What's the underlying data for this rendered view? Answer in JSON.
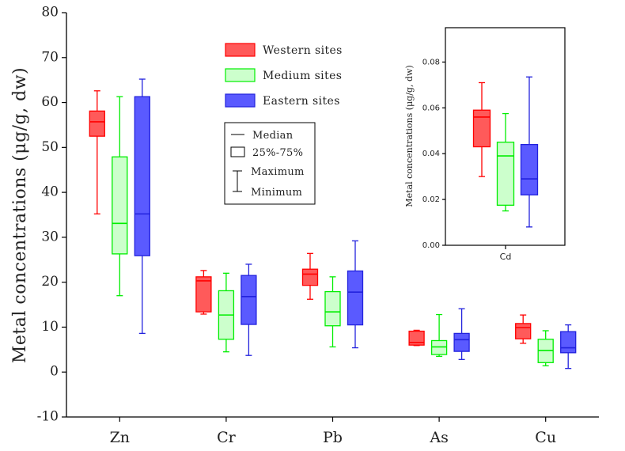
{
  "chart_data": [
    {
      "type": "boxplot",
      "title": "",
      "xlabel": "",
      "ylabel": "Metal concentrations (μg/g, dw)",
      "ylim": [
        -10,
        80
      ],
      "yticks": [
        -10,
        0,
        10,
        20,
        30,
        40,
        50,
        60,
        70,
        80
      ],
      "categories": [
        "Zn",
        "Cr",
        "Pb",
        "As",
        "Cu"
      ],
      "series": [
        {
          "name": "Western sites",
          "color": "#ff0000",
          "fill": "#ff5a5a",
          "boxes": [
            {
              "min": 35.2,
              "q1": 52.5,
              "median": 55.7,
              "q3": 58.1,
              "max": 62.6
            },
            {
              "min": 12.9,
              "q1": 13.4,
              "median": 20.3,
              "q3": 21.2,
              "max": 22.6
            },
            {
              "min": 16.2,
              "q1": 19.3,
              "median": 21.8,
              "q3": 22.9,
              "max": 26.4
            },
            {
              "min": 5.9,
              "q1": 6.0,
              "median": 6.6,
              "q3": 9.1,
              "max": 9.3
            },
            {
              "min": 6.4,
              "q1": 7.4,
              "median": 9.9,
              "q3": 10.8,
              "max": 12.7
            }
          ]
        },
        {
          "name": "Medium sites",
          "color": "#00ee00",
          "fill": "#ccffcc",
          "boxes": [
            {
              "min": 17.0,
              "q1": 26.3,
              "median": 33.1,
              "q3": 47.9,
              "max": 61.3
            },
            {
              "min": 4.5,
              "q1": 7.3,
              "median": 12.7,
              "q3": 18.1,
              "max": 22.0
            },
            {
              "min": 5.6,
              "q1": 10.3,
              "median": 13.4,
              "q3": 17.9,
              "max": 21.2
            },
            {
              "min": 3.5,
              "q1": 3.9,
              "median": 5.6,
              "q3": 7.0,
              "max": 12.8
            },
            {
              "min": 1.4,
              "q1": 2.1,
              "median": 4.8,
              "q3": 7.3,
              "max": 9.2
            }
          ]
        },
        {
          "name": "Eastern sites",
          "color": "#2222dd",
          "fill": "#5a5aff",
          "boxes": [
            {
              "min": 8.6,
              "q1": 25.9,
              "median": 35.2,
              "q3": 61.3,
              "max": 65.2
            },
            {
              "min": 3.7,
              "q1": 10.6,
              "median": 16.8,
              "q3": 21.5,
              "max": 24.0
            },
            {
              "min": 5.4,
              "q1": 10.5,
              "median": 17.8,
              "q3": 22.5,
              "max": 29.2
            },
            {
              "min": 2.8,
              "q1": 4.6,
              "median": 7.2,
              "q3": 8.6,
              "max": 14.1
            },
            {
              "min": 0.8,
              "q1": 4.3,
              "median": 5.4,
              "q3": 9.0,
              "max": 10.5
            }
          ]
        }
      ],
      "legend": [
        "Western sites",
        "Medium sites",
        "Eastern sites"
      ],
      "key": {
        "median": "Median",
        "iqr": "25%-75%",
        "maximum": "Maximum",
        "minimum": "Minimum"
      }
    },
    {
      "type": "boxplot",
      "title": "",
      "xlabel": "",
      "ylabel": "Metal concentrations (μg/g, dw)",
      "ylim": [
        0,
        0.095
      ],
      "yticks": [
        0,
        0.02,
        0.04,
        0.06,
        0.08
      ],
      "ytick_labels": [
        "0.00",
        "0.02",
        "0.04",
        "0.06",
        "0.08"
      ],
      "categories": [
        "Cd"
      ],
      "series": [
        {
          "name": "Western sites",
          "boxes": [
            {
              "min": 0.03,
              "q1": 0.043,
              "median": 0.056,
              "q3": 0.059,
              "max": 0.071
            }
          ]
        },
        {
          "name": "Medium sites",
          "boxes": [
            {
              "min": 0.015,
              "q1": 0.0175,
              "median": 0.039,
              "q3": 0.045,
              "max": 0.0575
            }
          ]
        },
        {
          "name": "Eastern sites",
          "boxes": [
            {
              "min": 0.008,
              "q1": 0.022,
              "median": 0.029,
              "q3": 0.044,
              "max": 0.0735
            }
          ]
        }
      ]
    }
  ]
}
